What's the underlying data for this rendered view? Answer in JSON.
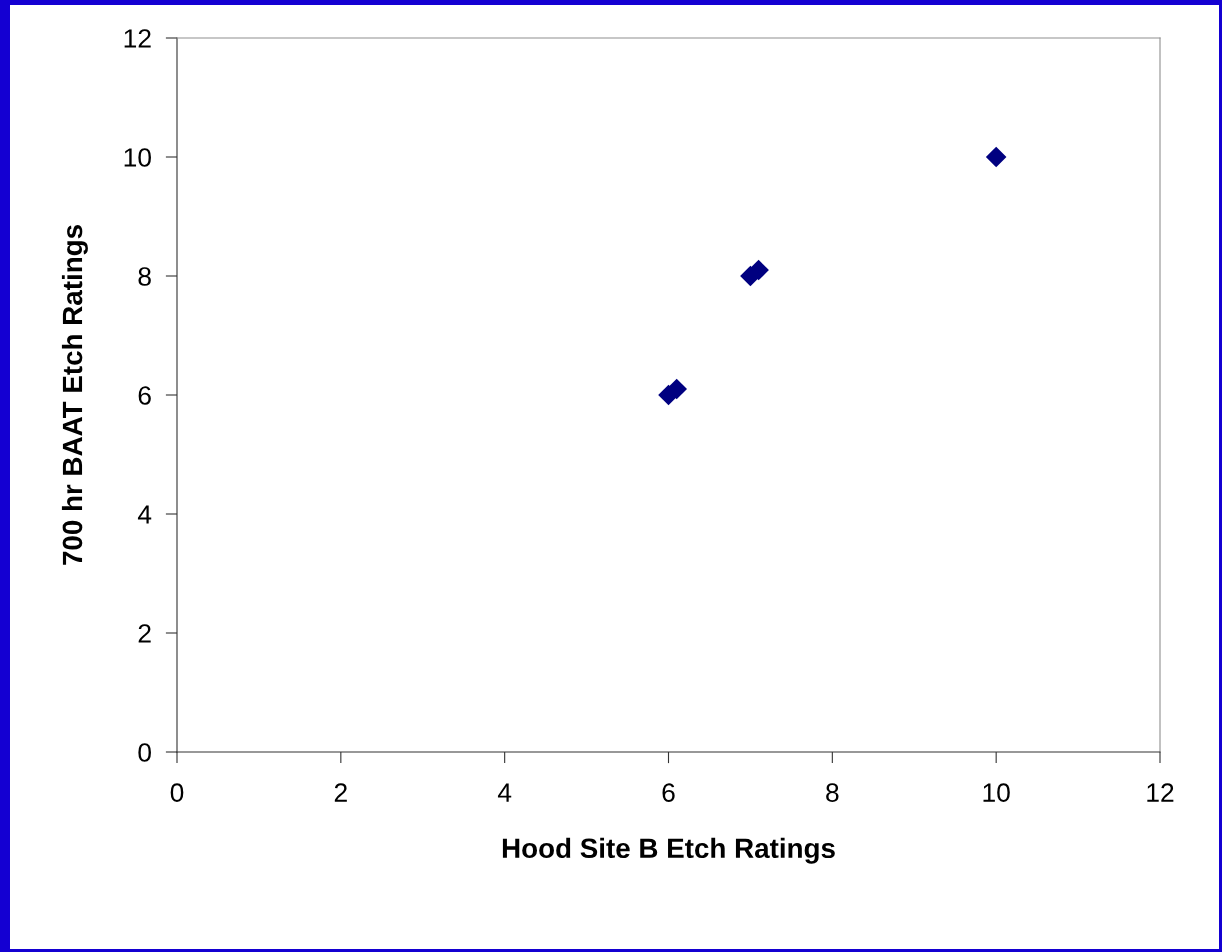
{
  "chart_data": {
    "type": "scatter",
    "xlabel": "Hood Site B Etch Ratings",
    "ylabel": "700 hr BAAT Etch Ratings",
    "x": [
      6.0,
      6.1,
      7.0,
      7.1,
      10.0
    ],
    "series": [
      {
        "color": "#000080",
        "values": [
          6.0,
          6.1,
          8.0,
          8.1,
          10.0
        ]
      }
    ],
    "marker": "diamond",
    "xlim": [
      0,
      12
    ],
    "xticks": [
      0,
      2,
      4,
      6,
      8,
      10,
      12
    ],
    "ylim": [
      0,
      12
    ],
    "yticks": [
      0,
      2,
      4,
      6,
      8,
      10,
      12
    ],
    "grid": false,
    "legend": false
  }
}
